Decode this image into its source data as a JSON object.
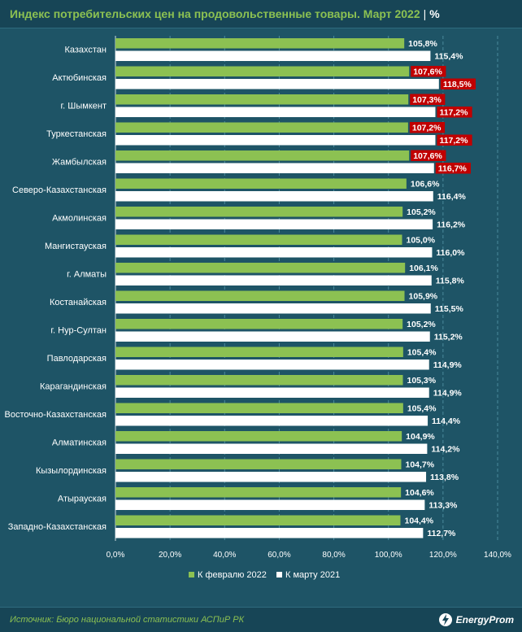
{
  "header": {
    "title": "Индекс потребительских цен на продовольственные товары. Март 2022",
    "separator": "|",
    "unit": "%"
  },
  "footer": {
    "source": "Источник: Бюро национальной статистики АСПиР РК",
    "brand": "EnergyProm"
  },
  "colors": {
    "series1": "#8cc152",
    "series2": "#ffffff",
    "highlight": "#c00000",
    "background": "#1e5466"
  },
  "chart_data": {
    "type": "bar",
    "orientation": "horizontal",
    "categories": [
      "Казахстан",
      "Актюбинская",
      "г. Шымкент",
      "Туркестанская",
      "Жамбылская",
      "Северо-Казахстанская",
      "Акмолинская",
      "Мангистауская",
      "г. Алматы",
      "Костанайская",
      "г. Нур-Султан",
      "Павлодарская",
      "Карагандинская",
      "Восточно-Казахстанская",
      "Алматинская",
      "Кызылординская",
      "Атырауская",
      "Западно-Казахстанская"
    ],
    "series": [
      {
        "name": "К февралю 2022",
        "values": [
          105.8,
          107.6,
          107.3,
          107.2,
          107.6,
          106.6,
          105.2,
          105.0,
          106.1,
          105.9,
          105.2,
          105.4,
          105.3,
          105.4,
          104.9,
          104.7,
          104.6,
          104.4
        ],
        "labels": [
          "105,8%",
          "107,6%",
          "107,3%",
          "107,2%",
          "107,6%",
          "106,6%",
          "105,2%",
          "105,0%",
          "106,1%",
          "105,9%",
          "105,2%",
          "105,4%",
          "105,3%",
          "105,4%",
          "104,9%",
          "104,7%",
          "104,6%",
          "104,4%"
        ],
        "highlighted": [
          false,
          true,
          true,
          true,
          true,
          false,
          false,
          false,
          false,
          false,
          false,
          false,
          false,
          false,
          false,
          false,
          false,
          false
        ]
      },
      {
        "name": "К марту 2021",
        "values": [
          115.4,
          118.5,
          117.2,
          117.2,
          116.7,
          116.4,
          116.2,
          116.0,
          115.8,
          115.5,
          115.2,
          114.9,
          114.9,
          114.4,
          114.2,
          113.8,
          113.3,
          112.7
        ],
        "labels": [
          "115,4%",
          "118,5%",
          "117,2%",
          "117,2%",
          "116,7%",
          "116,4%",
          "116,2%",
          "116,0%",
          "115,8%",
          "115,5%",
          "115,2%",
          "114,9%",
          "114,9%",
          "114,4%",
          "114,2%",
          "113,8%",
          "113,3%",
          "112,7%"
        ],
        "highlighted": [
          false,
          true,
          true,
          true,
          true,
          false,
          false,
          false,
          false,
          false,
          false,
          false,
          false,
          false,
          false,
          false,
          false,
          false
        ]
      }
    ],
    "xlim": [
      0,
      140
    ],
    "x_ticks": [
      "0,0%",
      "20,0%",
      "40,0%",
      "60,0%",
      "80,0%",
      "100,0%",
      "120,0%",
      "140,0%"
    ],
    "grid": "vertical dashed",
    "legend_position": "bottom"
  }
}
